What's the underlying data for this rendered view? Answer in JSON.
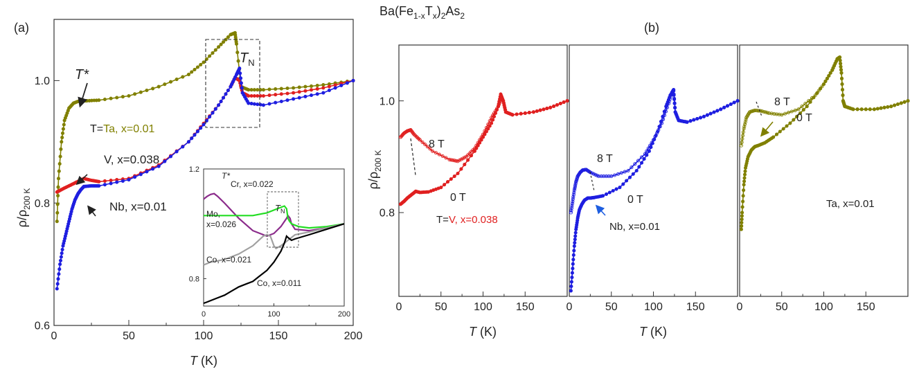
{
  "figure_title": "Ba(Fe1-xTx)2As2",
  "title_parts": {
    "a": "Ba(Fe",
    "b": "1-x",
    "c": "T",
    "d": "x",
    "e": ")",
    "f": "2",
    "g": "As",
    "h": "2"
  },
  "panel_a_label": "(a)",
  "panel_b_label": "(b)",
  "colors": {
    "Ta": "#808000",
    "V": "#e02020",
    "Nb": "#1e1ee0",
    "Cr": "#8b2b8b",
    "Mo": "#22dd22",
    "Co021": "#a0a0a0",
    "Co011": "#000000"
  },
  "chart_data": [
    {
      "panel": "a-main",
      "type": "scatter",
      "xlabel": "T (K)",
      "ylabel": "ρ/ρ200 K",
      "xlim": [
        0,
        200
      ],
      "ylim": [
        0.6,
        1.1
      ],
      "xticks": [
        "0",
        "50",
        "100",
        "150",
        "200"
      ],
      "yticks": [
        "0.6",
        "0.8",
        "1.0"
      ],
      "grid": false,
      "series": [
        {
          "name": "T=Ta, x=0.01",
          "color": "#808000",
          "x": [
            2,
            3,
            5,
            7,
            10,
            13,
            16,
            19,
            22,
            30,
            50,
            70,
            90,
            100,
            110,
            118,
            121,
            122,
            125,
            130,
            140,
            160,
            180,
            200
          ],
          "y": [
            0.77,
            0.84,
            0.9,
            0.935,
            0.955,
            0.963,
            0.966,
            0.967,
            0.967,
            0.968,
            0.975,
            0.99,
            1.01,
            1.03,
            1.055,
            1.075,
            1.078,
            1.06,
            0.99,
            0.985,
            0.985,
            0.988,
            0.993,
            1.0
          ]
        },
        {
          "name": "V, x=0.038",
          "color": "#e02020",
          "x": [
            2,
            5,
            10,
            15,
            20,
            25,
            30,
            50,
            70,
            90,
            100,
            110,
            118,
            121,
            124,
            126,
            130,
            140,
            160,
            180,
            200
          ],
          "y": [
            0.818,
            0.822,
            0.828,
            0.834,
            0.84,
            0.837,
            0.835,
            0.84,
            0.862,
            0.9,
            0.93,
            0.96,
            0.99,
            1.005,
            1.0,
            0.98,
            0.975,
            0.975,
            0.98,
            0.988,
            1.0
          ]
        },
        {
          "name": "Nb, x=0.01",
          "color": "#1e1ee0",
          "x": [
            2,
            4,
            6,
            8,
            10,
            12,
            14,
            16,
            18,
            20,
            25,
            30,
            50,
            70,
            90,
            100,
            110,
            118,
            122,
            124,
            126,
            130,
            140,
            160,
            180,
            200
          ],
          "y": [
            0.66,
            0.7,
            0.73,
            0.75,
            0.77,
            0.79,
            0.805,
            0.815,
            0.822,
            0.827,
            0.828,
            0.828,
            0.838,
            0.86,
            0.9,
            0.928,
            0.96,
            0.99,
            1.01,
            1.02,
            0.98,
            0.963,
            0.96,
            0.97,
            0.98,
            1.0
          ]
        }
      ],
      "annotations": {
        "tstar": "T*",
        "tn": "TN",
        "tn_main": "T",
        "tn_sub": "N",
        "eq": "T=",
        "ta": "Ta, x=0.01",
        "v": "V, x=0.038",
        "nb": "Nb, x=0.01"
      }
    },
    {
      "panel": "a-inset",
      "type": "line",
      "xlim": [
        0,
        200
      ],
      "ylim": [
        0.7,
        1.2
      ],
      "xticks": [
        "0",
        "100",
        "200"
      ],
      "yticks": [
        "0.8",
        "1.2"
      ],
      "series": [
        {
          "name": "Cr, x=0.022",
          "color": "#8b2b8b",
          "x": [
            0,
            5,
            10,
            15,
            20,
            30,
            50,
            70,
            90,
            100,
            110,
            118,
            120,
            123,
            125,
            130,
            150,
            175,
            200
          ],
          "y": [
            1.09,
            1.1,
            1.107,
            1.11,
            1.1,
            1.075,
            1.02,
            0.975,
            0.955,
            0.965,
            0.99,
            1.02,
            1.03,
            1.02,
            1.0,
            0.98,
            0.975,
            0.985,
            1.0
          ]
        },
        {
          "name": "Mo, x=0.026",
          "color": "#22dd22",
          "x": [
            0,
            10,
            20,
            30,
            50,
            70,
            90,
            100,
            110,
            115,
            118,
            120,
            122,
            125,
            135,
            150,
            175,
            200
          ],
          "y": [
            1.03,
            1.03,
            1.03,
            1.03,
            1.03,
            1.03,
            1.04,
            1.05,
            1.06,
            1.065,
            1.055,
            1.02,
            1.01,
            1.0,
            0.99,
            0.985,
            0.99,
            1.0
          ]
        },
        {
          "name": "Co, x=0.021",
          "color": "#a0a0a0",
          "x": [
            0,
            10,
            20,
            30,
            50,
            70,
            85,
            90,
            95,
            100,
            103,
            110,
            120,
            125,
            130,
            150,
            175,
            200
          ],
          "y": [
            0.85,
            0.86,
            0.865,
            0.87,
            0.89,
            0.92,
            0.955,
            0.96,
            0.955,
            0.92,
            0.91,
            0.92,
            0.94,
            0.95,
            0.96,
            0.97,
            0.985,
            1.0
          ]
        },
        {
          "name": "Co, x=0.011",
          "color": "#000000",
          "x": [
            0,
            5,
            10,
            20,
            30,
            40,
            50,
            60,
            70,
            80,
            90,
            100,
            110,
            115,
            118,
            120,
            125,
            130,
            150,
            175,
            200
          ],
          "y": [
            0.71,
            0.715,
            0.72,
            0.73,
            0.74,
            0.755,
            0.77,
            0.78,
            0.79,
            0.81,
            0.83,
            0.86,
            0.9,
            0.93,
            0.955,
            0.95,
            0.94,
            0.945,
            0.96,
            0.98,
            1.0
          ]
        }
      ],
      "annotations": {
        "tstar": "T*",
        "tn_main": "T",
        "tn_sub": "N",
        "cr": "Cr, x=0.022",
        "mo1": "Mo,",
        "mo2": "x=0.026",
        "co21": "Co, x=0.021",
        "co11": "Co, x=0.011"
      }
    },
    {
      "panel": "b1",
      "type": "scatter",
      "xlabel": "T (K)",
      "ylabel": "ρ/ρ200 K",
      "xlim": [
        0,
        200
      ],
      "ylim": [
        0.65,
        1.1
      ],
      "xticks": [
        "0",
        "50",
        "100",
        "150"
      ],
      "yticks": [
        "0.8",
        "1.0"
      ],
      "series": [
        {
          "name": "8 T",
          "color": "#e02020",
          "open": true,
          "x": [
            2,
            6,
            10,
            14,
            18,
            25,
            40,
            60,
            70,
            80,
            90,
            100,
            110,
            118,
            122,
            124,
            127,
            135,
            160,
            180,
            200
          ],
          "y": [
            0.935,
            0.942,
            0.946,
            0.948,
            0.94,
            0.93,
            0.91,
            0.895,
            0.892,
            0.9,
            0.915,
            0.94,
            0.97,
            0.99,
            1.005,
            1.0,
            0.98,
            0.975,
            0.98,
            0.988,
            1.0
          ]
        },
        {
          "name": "0 T",
          "color": "#e02020",
          "open": false,
          "x": [
            2,
            6,
            10,
            15,
            20,
            25,
            35,
            50,
            70,
            90,
            100,
            110,
            118,
            121,
            124,
            127,
            135,
            160,
            180,
            200
          ],
          "y": [
            0.815,
            0.82,
            0.826,
            0.832,
            0.838,
            0.836,
            0.837,
            0.845,
            0.87,
            0.91,
            0.935,
            0.96,
            0.99,
            1.012,
            1.0,
            0.98,
            0.975,
            0.98,
            0.988,
            1.0
          ]
        }
      ],
      "annotations": {
        "b8": "8 T",
        "b0": "0 T",
        "eq": "T=",
        "label": "V, x=0.038"
      }
    },
    {
      "panel": "b2",
      "type": "scatter",
      "xlabel": "T (K)",
      "xlim": [
        0,
        200
      ],
      "ylim": [
        0.65,
        1.1
      ],
      "xticks": [
        "0",
        "50",
        "100",
        "150"
      ],
      "series": [
        {
          "name": "8 T",
          "color": "#1e1ee0",
          "open": true,
          "x": [
            2,
            4,
            6,
            8,
            10,
            13,
            16,
            20,
            25,
            35,
            50,
            70,
            90,
            100,
            110,
            118,
            122,
            124,
            126,
            130,
            140,
            160,
            180,
            200
          ],
          "y": [
            0.8,
            0.82,
            0.84,
            0.855,
            0.865,
            0.872,
            0.876,
            0.877,
            0.872,
            0.865,
            0.865,
            0.875,
            0.905,
            0.93,
            0.96,
            0.995,
            1.015,
            1.02,
            0.98,
            0.965,
            0.962,
            0.972,
            0.985,
            1.0
          ]
        },
        {
          "name": "0 T",
          "color": "#1e1ee0",
          "open": false,
          "x": [
            2,
            4,
            6,
            8,
            10,
            12,
            15,
            18,
            22,
            25,
            30,
            40,
            60,
            80,
            95,
            105,
            115,
            120,
            124,
            126,
            130,
            140,
            160,
            180,
            200
          ],
          "y": [
            0.66,
            0.7,
            0.74,
            0.77,
            0.79,
            0.805,
            0.815,
            0.822,
            0.826,
            0.826,
            0.827,
            0.83,
            0.845,
            0.875,
            0.91,
            0.945,
            0.99,
            1.01,
            1.018,
            0.98,
            0.965,
            0.962,
            0.972,
            0.985,
            1.0
          ]
        }
      ],
      "annotations": {
        "b8": "8 T",
        "b0": "0 T",
        "label": "Nb, x=0.01"
      }
    },
    {
      "panel": "b3",
      "type": "scatter",
      "xlabel": "",
      "xlim": [
        0,
        200
      ],
      "ylim": [
        0.65,
        1.1
      ],
      "xticks": [
        "0",
        "50",
        "100",
        "150"
      ],
      "series": [
        {
          "name": "8 T",
          "color": "#808000",
          "open": true,
          "x": [
            2,
            5,
            8,
            12,
            18,
            25,
            35,
            50,
            70,
            90,
            100,
            110,
            116,
            119,
            121,
            123,
            125,
            135,
            160,
            180,
            200
          ],
          "y": [
            0.92,
            0.95,
            0.97,
            0.98,
            0.983,
            0.982,
            0.978,
            0.975,
            0.985,
            1.01,
            1.03,
            1.055,
            1.075,
            1.078,
            1.05,
            1.0,
            0.99,
            0.985,
            0.985,
            0.99,
            1.0
          ]
        },
        {
          "name": "0 T",
          "color": "#808000",
          "open": false,
          "x": [
            2,
            3,
            5,
            7,
            10,
            14,
            18,
            22,
            30,
            40,
            60,
            80,
            100,
            110,
            116,
            119,
            121,
            123,
            125,
            135,
            160,
            180,
            200
          ],
          "y": [
            0.77,
            0.8,
            0.85,
            0.88,
            0.9,
            0.912,
            0.918,
            0.92,
            0.925,
            0.935,
            0.96,
            0.99,
            1.03,
            1.055,
            1.075,
            1.078,
            1.05,
            1.0,
            0.99,
            0.985,
            0.985,
            0.99,
            1.0
          ]
        }
      ],
      "annotations": {
        "b8": "8 T",
        "b0": "0 T",
        "label": "Ta, x=0.01"
      }
    }
  ]
}
